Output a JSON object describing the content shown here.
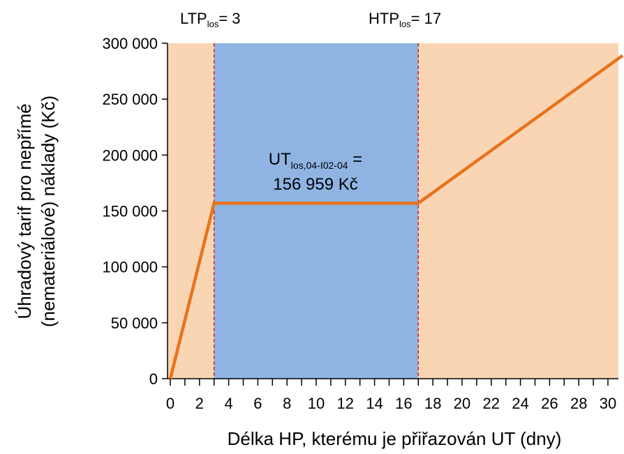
{
  "chart_data": {
    "type": "line",
    "xlabel": "Délka HP, kterému je přiřazován UT (dny)",
    "ylabel_line1": "Úhradový tarif pro nepřímé",
    "ylabel_line2": "(nemateriálové) náklady (Kč)",
    "xlim": [
      -0.2,
      31
    ],
    "ylim": [
      0,
      300000
    ],
    "x_ticks": [
      0,
      2,
      4,
      6,
      8,
      10,
      12,
      14,
      16,
      18,
      20,
      22,
      24,
      26,
      28,
      30
    ],
    "y_ticks": [
      0,
      50000,
      100000,
      150000,
      200000,
      250000,
      300000
    ],
    "y_tick_labels": [
      "0",
      "50 000",
      "100 000",
      "150 000",
      "200 000",
      "250 000",
      "300 000"
    ],
    "grid": false,
    "series": [
      {
        "color": "#E8731C",
        "x": [
          0,
          3,
          17,
          31
        ],
        "y": [
          0,
          156959,
          156959,
          289000
        ]
      }
    ],
    "regions": [
      {
        "from": -0.2,
        "to": 3,
        "color": "#F9D5B4"
      },
      {
        "from": 3,
        "to": 17,
        "color": "#8FB4E3"
      },
      {
        "from": 17,
        "to": 31,
        "color": "#F9D5B4"
      }
    ],
    "markers": [
      {
        "x": 3,
        "color": "#E0201B",
        "label_main": "LTP",
        "label_sub": "los",
        "label_rest": "= 3"
      },
      {
        "x": 17,
        "color": "#E0201B",
        "label_main": "HTP",
        "label_sub": "los",
        "label_rest": "= 17"
      }
    ],
    "annotation": {
      "line1_main": "UT",
      "line1_sub": "los,04-I02-04",
      "line1_rest": " =",
      "line2": "156 959 Kč",
      "x": 10,
      "y": 156959
    }
  }
}
